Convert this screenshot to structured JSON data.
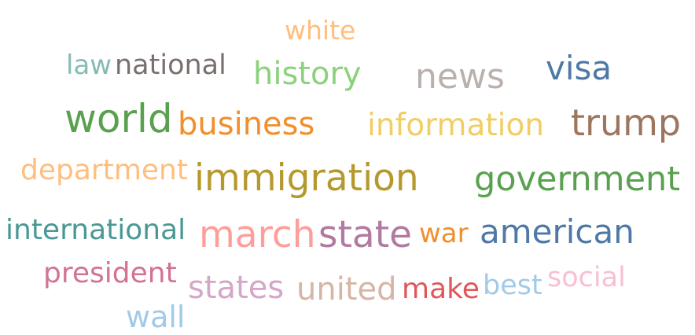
{
  "word_cloud": {
    "words": [
      {
        "text": "white",
        "color": "#ffbe7d"
      },
      {
        "text": "law",
        "color": "#86bcb6"
      },
      {
        "text": "national",
        "color": "#79706e"
      },
      {
        "text": "history",
        "color": "#8cd17d"
      },
      {
        "text": "news",
        "color": "#bab0ac"
      },
      {
        "text": "visa",
        "color": "#4e79a7"
      },
      {
        "text": "world",
        "color": "#59a14f"
      },
      {
        "text": "business",
        "color": "#f28e2b"
      },
      {
        "text": "information",
        "color": "#f1ce63"
      },
      {
        "text": "trump",
        "color": "#9d7660"
      },
      {
        "text": "department",
        "color": "#ffbe7d"
      },
      {
        "text": "immigration",
        "color": "#b6992d"
      },
      {
        "text": "government",
        "color": "#59a14f"
      },
      {
        "text": "international",
        "color": "#499894"
      },
      {
        "text": "march",
        "color": "#ff9d9a"
      },
      {
        "text": "state",
        "color": "#b07aa1"
      },
      {
        "text": "war",
        "color": "#f28e2b"
      },
      {
        "text": "american",
        "color": "#4e79a7"
      },
      {
        "text": "president",
        "color": "#d37295"
      },
      {
        "text": "states",
        "color": "#d4a6c8"
      },
      {
        "text": "united",
        "color": "#d7b5a6"
      },
      {
        "text": "make",
        "color": "#e15759"
      },
      {
        "text": "best",
        "color": "#a0cbe8"
      },
      {
        "text": "social",
        "color": "#fabfd2"
      },
      {
        "text": "wall",
        "color": "#a0cbe8"
      }
    ]
  }
}
